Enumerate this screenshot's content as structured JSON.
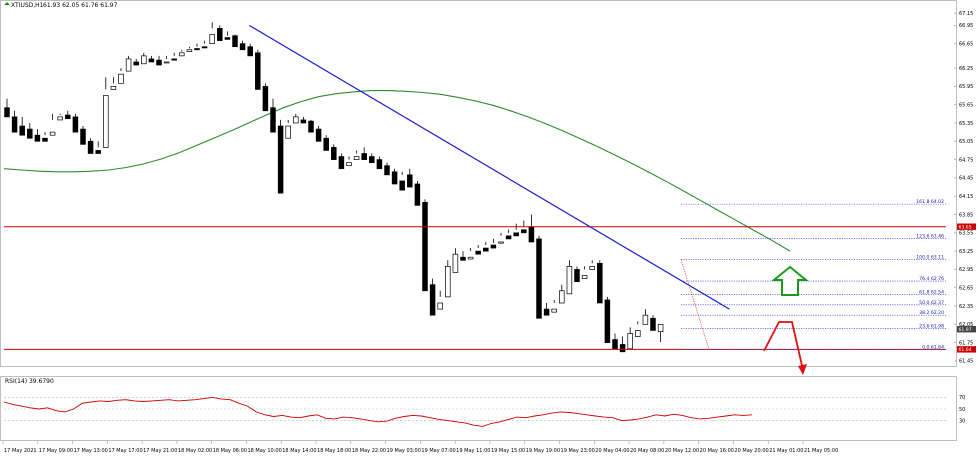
{
  "header": {
    "symbol_label": "XTIUSD,H1",
    "ohlc_label": "61.93 62.05 61.76 61.97"
  },
  "rsi_label": "RSI(14) 39.6790",
  "chart_data": {
    "type": "candlestick",
    "instrument": "XTIUSD",
    "timeframe": "H1",
    "ylim": [
      61.4,
      67.3
    ],
    "y_ticks": [
      67.15,
      66.95,
      66.65,
      66.25,
      65.95,
      65.65,
      65.35,
      65.05,
      64.75,
      64.45,
      64.15,
      63.85,
      63.55,
      63.25,
      62.95,
      62.65,
      62.35,
      62.05,
      61.75,
      61.45
    ],
    "x_tick_labels": [
      "17 May 2021",
      "17 May 09:00",
      "17 May 13:00",
      "17 May 17:00",
      "17 May 21:00",
      "18 May 02:00",
      "18 May 06:00",
      "18 May 10:00",
      "18 May 14:00",
      "18 May 18:00",
      "18 May 22:00",
      "19 May 03:00",
      "19 May 07:00",
      "19 May 11:00",
      "19 May 15:00",
      "19 May 19:00",
      "19 May 23:00",
      "20 May 04:00",
      "20 May 08:00",
      "20 May 12:00",
      "20 May 16:00",
      "20 May 20:00",
      "21 May 01:00",
      "21 May 05:00"
    ],
    "candles": [
      [
        65.6,
        65.45,
        65.75,
        65.5
      ],
      [
        65.45,
        65.2,
        65.55,
        65.3
      ],
      [
        65.3,
        65.15,
        65.45,
        65.25
      ],
      [
        65.25,
        65.1,
        65.35,
        65.15
      ],
      [
        65.15,
        65.05,
        65.25,
        65.1
      ],
      [
        65.1,
        65.05,
        65.2,
        65.15
      ],
      [
        65.15,
        65.2,
        65.5,
        65.4
      ],
      [
        65.4,
        65.45,
        65.5,
        65.48
      ],
      [
        65.48,
        65.42,
        65.55,
        65.45
      ],
      [
        65.45,
        65.2,
        65.5,
        65.25
      ],
      [
        65.25,
        65.0,
        65.3,
        65.05
      ],
      [
        65.05,
        64.85,
        65.1,
        64.9
      ],
      [
        64.9,
        64.85,
        65.05,
        64.95
      ],
      [
        64.95,
        65.8,
        66.1,
        65.9
      ],
      [
        65.9,
        65.95,
        66.1,
        66.0
      ],
      [
        66.0,
        66.15,
        66.25,
        66.2
      ],
      [
        66.2,
        66.4,
        66.45,
        66.35
      ],
      [
        66.35,
        66.3,
        66.4,
        66.32
      ],
      [
        66.32,
        66.45,
        66.5,
        66.4
      ],
      [
        66.4,
        66.35,
        66.45,
        66.38
      ],
      [
        66.38,
        66.3,
        66.45,
        66.35
      ],
      [
        66.35,
        66.35,
        66.45,
        66.4
      ],
      [
        66.4,
        66.38,
        66.5,
        66.45
      ],
      [
        66.45,
        66.5,
        66.55,
        66.52
      ],
      [
        66.52,
        66.55,
        66.6,
        66.57
      ],
      [
        66.57,
        66.55,
        66.65,
        66.6
      ],
      [
        66.6,
        66.58,
        66.7,
        66.65
      ],
      [
        66.65,
        66.8,
        67.0,
        66.9
      ],
      [
        66.9,
        66.7,
        66.95,
        66.75
      ],
      [
        66.75,
        66.72,
        66.85,
        66.78
      ],
      [
        66.78,
        66.6,
        66.8,
        66.65
      ],
      [
        66.65,
        66.55,
        66.7,
        66.6
      ],
      [
        66.6,
        66.45,
        66.65,
        66.5
      ],
      [
        66.5,
        65.9,
        66.55,
        65.95
      ],
      [
        65.95,
        65.55,
        66.0,
        65.6
      ],
      [
        65.6,
        65.2,
        65.75,
        65.3
      ],
      [
        65.3,
        64.2,
        65.4,
        65.1
      ],
      [
        65.1,
        65.3,
        65.4,
        65.35
      ],
      [
        65.35,
        65.45,
        65.5,
        65.4
      ],
      [
        65.4,
        65.35,
        65.45,
        65.38
      ],
      [
        65.38,
        65.2,
        65.4,
        65.25
      ],
      [
        65.25,
        65.05,
        65.3,
        65.1
      ],
      [
        65.1,
        64.9,
        65.15,
        64.95
      ],
      [
        64.95,
        64.75,
        65.0,
        64.8
      ],
      [
        64.8,
        64.6,
        64.85,
        64.65
      ],
      [
        64.65,
        64.7,
        64.8,
        64.75
      ],
      [
        64.75,
        64.8,
        64.9,
        64.85
      ],
      [
        64.85,
        64.75,
        64.95,
        64.8
      ],
      [
        64.8,
        64.7,
        64.85,
        64.75
      ],
      [
        64.75,
        64.6,
        64.8,
        64.65
      ],
      [
        64.65,
        64.5,
        64.7,
        64.55
      ],
      [
        64.55,
        64.35,
        64.6,
        64.4
      ],
      [
        64.4,
        64.25,
        64.55,
        64.5
      ],
      [
        64.5,
        64.3,
        64.6,
        64.35
      ],
      [
        64.35,
        64.0,
        64.4,
        64.05
      ],
      [
        64.05,
        62.6,
        64.1,
        62.7
      ],
      [
        62.7,
        62.2,
        62.8,
        62.3
      ],
      [
        62.3,
        62.4,
        62.6,
        62.5
      ],
      [
        62.5,
        63.0,
        63.1,
        62.9
      ],
      [
        62.9,
        63.2,
        63.3,
        63.15
      ],
      [
        63.15,
        63.1,
        63.25,
        63.12
      ],
      [
        63.12,
        63.15,
        63.3,
        63.25
      ],
      [
        63.25,
        63.2,
        63.35,
        63.3
      ],
      [
        63.3,
        63.25,
        63.4,
        63.35
      ],
      [
        63.35,
        63.3,
        63.45,
        63.38
      ],
      [
        63.38,
        63.4,
        63.55,
        63.5
      ],
      [
        63.5,
        63.45,
        63.6,
        63.55
      ],
      [
        63.55,
        63.5,
        63.7,
        63.6
      ],
      [
        63.6,
        63.55,
        63.75,
        63.65
      ],
      [
        63.65,
        63.4,
        63.85,
        63.45
      ],
      [
        63.45,
        62.15,
        63.5,
        62.3
      ],
      [
        62.3,
        62.2,
        62.4,
        62.25
      ],
      [
        62.25,
        62.3,
        62.45,
        62.4
      ],
      [
        62.4,
        62.6,
        62.7,
        62.55
      ],
      [
        62.55,
        63.0,
        63.1,
        62.95
      ],
      [
        62.95,
        62.75,
        63.0,
        62.8
      ],
      [
        62.8,
        62.85,
        63.0,
        62.95
      ],
      [
        62.95,
        63.0,
        63.1,
        63.05
      ],
      [
        63.05,
        62.4,
        63.1,
        62.45
      ],
      [
        62.45,
        61.75,
        62.5,
        61.8
      ],
      [
        61.8,
        61.65,
        61.9,
        61.72
      ],
      [
        61.72,
        61.6,
        61.85,
        61.65
      ],
      [
        61.65,
        61.9,
        62.0,
        61.85
      ],
      [
        61.85,
        61.95,
        62.1,
        62.05
      ],
      [
        62.05,
        62.2,
        62.3,
        62.15
      ],
      [
        62.15,
        61.95,
        62.2,
        62.0
      ],
      [
        61.93,
        62.05,
        61.76,
        61.97
      ]
    ],
    "ema_line": {
      "color": "#2e8b2e",
      "values": [
        64.6,
        64.58,
        64.56,
        64.55,
        64.55,
        64.56,
        64.58,
        64.62,
        64.68,
        64.76,
        64.86,
        64.98,
        65.1,
        65.22,
        65.35,
        65.48,
        65.6,
        65.7,
        65.78,
        65.83,
        65.86,
        65.88,
        65.88,
        65.87,
        65.85,
        65.82,
        65.77,
        65.71,
        65.64,
        65.55,
        65.45,
        65.34,
        65.22,
        65.09,
        64.96,
        64.82,
        64.68,
        64.53,
        64.38,
        64.22,
        64.06,
        63.9,
        63.74,
        63.58,
        63.42,
        63.25
      ]
    },
    "trend_line": {
      "color": "#1a1acc",
      "start": [
        66.95,
        0.262
      ],
      "end": [
        62.3,
        0.775
      ]
    },
    "horizontal_lines": [
      {
        "price": 63.65,
        "color": "#cc0000"
      },
      {
        "price": 61.64,
        "color": "#cc0000"
      }
    ],
    "fib_levels": [
      {
        "label": "0.0 61.64",
        "price": 61.64
      },
      {
        "label": "23.6 61.98",
        "price": 61.98
      },
      {
        "label": "38.2 62.20",
        "price": 62.2
      },
      {
        "label": "50.0 62.37",
        "price": 62.37
      },
      {
        "label": "61.8 62.54",
        "price": 62.54
      },
      {
        "label": "76.4 62.76",
        "price": 62.76
      },
      {
        "label": "100.0 63.11",
        "price": 63.11
      },
      {
        "label": "123.6 63.46",
        "price": 63.46
      },
      {
        "label": "161.8 64.02",
        "price": 64.02
      }
    ],
    "price_tags": [
      {
        "label": "63.65",
        "price": 63.65,
        "color": "#cc0000"
      },
      {
        "label": "61.97",
        "price": 61.97,
        "color": "#444444"
      },
      {
        "label": "61.64",
        "price": 61.64,
        "color": "#cc0000"
      }
    ],
    "annotations": {
      "up_arrow_color": "#1a9a1a",
      "down_arrow_color": "#dd1111"
    },
    "rsi": {
      "label": "RSI(14) 39.6790",
      "ylim": [
        0,
        100
      ],
      "levels": [
        70,
        50,
        30
      ],
      "color": "#cc0000",
      "values": [
        62,
        58,
        55,
        52,
        50,
        52,
        47,
        45,
        50,
        60,
        62,
        64,
        63,
        65,
        66,
        64,
        63,
        64,
        65,
        66,
        64,
        65,
        66,
        68,
        70,
        67,
        66,
        60,
        55,
        45,
        40,
        37,
        39,
        36,
        35,
        38,
        40,
        34,
        33,
        36,
        35,
        33,
        30,
        28,
        29,
        34,
        37,
        39,
        38,
        35,
        32,
        30,
        28,
        26,
        22,
        20,
        25,
        28,
        32,
        36,
        35,
        38,
        40,
        43,
        45,
        44,
        42,
        40,
        38,
        36,
        35,
        30,
        31,
        33,
        36,
        40,
        38,
        41,
        39,
        35,
        33,
        34,
        36,
        38,
        40,
        39,
        40
      ]
    }
  }
}
